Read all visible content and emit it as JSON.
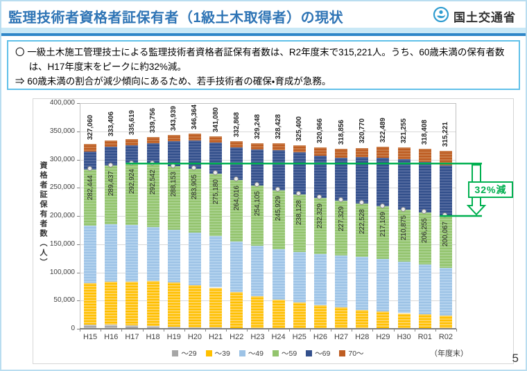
{
  "header": {
    "title": "監理技術者資格者証保有者（1級土木取得者）の現状",
    "agency": "国土交通省"
  },
  "summary_box": {
    "line1": "〇 一級土木施工管理技士による監理技術者資格者証保有者数は、R2年度末で315,221人。うち、60歳未満の保有者数は、H17年度末をピークに約32%減。",
    "line2": "⇒ 60歳未満の割合が減少傾向にあるため、若手技術者の確保・育成が急務。"
  },
  "chart_data": {
    "type": "bar",
    "stacked": true,
    "ylabel": "資格者証保有者数（人）",
    "xlabel_suffix": "（年度末）",
    "ylim": [
      0,
      400000
    ],
    "ytick_step": 50000,
    "grid": true,
    "legend_position": "bottom",
    "categories": [
      "H15",
      "H16",
      "H17",
      "H18",
      "H19",
      "H20",
      "H21",
      "H22",
      "H23",
      "H24",
      "H25",
      "H26",
      "H27",
      "H28",
      "H29",
      "H30",
      "R01",
      "R02"
    ],
    "series": [
      {
        "name": "～29",
        "color": "#a6a6a6",
        "color2": "#c9c9c9",
        "values": [
          7000,
          7000,
          6200,
          5400,
          3800,
          3000,
          2100,
          1300,
          900,
          800,
          700,
          700,
          600,
          600,
          600,
          600,
          600,
          600
        ]
      },
      {
        "name": "～39",
        "color": "#ffc000",
        "color2": "#ffd35a",
        "values": [
          73400,
          75900,
          77500,
          79100,
          78200,
          74100,
          70900,
          63400,
          56400,
          50800,
          45900,
          41000,
          36900,
          32800,
          30300,
          27000,
          25400,
          22900
        ]
      },
      {
        "name": "～49",
        "color": "#9dc3e6",
        "color2": "#b3d2ee",
        "values": [
          102300,
          101800,
          100200,
          96100,
          93300,
          93200,
          91100,
          89900,
          90300,
          89800,
          89500,
          90700,
          92400,
          93600,
          92800,
          91200,
          88700,
          85000
        ]
      },
      {
        "name": "～59",
        "color": "#93c46d",
        "color2": "#a9d18e",
        "values": [
          99744,
          104737,
          109024,
          111942,
          112853,
          113605,
          111080,
          109416,
          106505,
          104529,
          102028,
          99929,
          97429,
          95528,
          93409,
          92075,
          91555,
          91567
        ]
      },
      {
        "name": "～69",
        "color": "#33508c",
        "color2": "#52699e",
        "values": [
          32116,
          33469,
          32695,
          36514,
          44286,
          50059,
          54700,
          57852,
          63643,
          70499,
          74272,
          74637,
          76027,
          81242,
          86380,
          89380,
          89153,
          89854
        ]
      },
      {
        "name": "70～",
        "color": "#be5d23",
        "color2": "#c97b47",
        "values": [
          12500,
          10500,
          10000,
          10700,
          11500,
          12400,
          11200,
          11000,
          11500,
          12000,
          13000,
          14000,
          15500,
          17000,
          19000,
          21000,
          23000,
          25300
        ]
      }
    ],
    "total_labels": [
      327060,
      333406,
      335619,
      339756,
      343939,
      346364,
      341080,
      332868,
      329248,
      328428,
      325400,
      320966,
      318856,
      320770,
      322489,
      321255,
      318408,
      315221
    ],
    "under60_labels": [
      282444,
      289437,
      292924,
      292542,
      288153,
      283905,
      275180,
      264016,
      254105,
      245929,
      238128,
      232329,
      227329,
      222528,
      217109,
      210875,
      206255,
      200067
    ],
    "annotation": {
      "text": "32%減",
      "color": "#00b050",
      "peak_category": "H17",
      "peak_value": 292924,
      "end_category": "R02",
      "end_value": 200067
    }
  },
  "page_number": "5"
}
